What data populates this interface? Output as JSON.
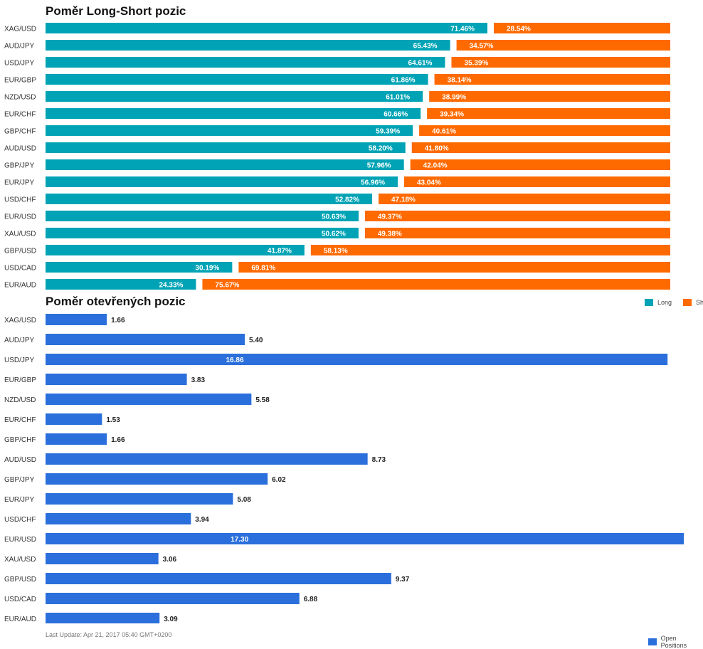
{
  "chart_data": [
    {
      "type": "bar",
      "stacked": true,
      "title": "Poměr Long-Short pozic",
      "categories": [
        "XAG/USD",
        "AUD/JPY",
        "USD/JPY",
        "EUR/GBP",
        "NZD/USD",
        "EUR/CHF",
        "GBP/CHF",
        "AUD/USD",
        "GBP/JPY",
        "EUR/JPY",
        "USD/CHF",
        "EUR/USD",
        "XAU/USD",
        "GBP/USD",
        "USD/CAD",
        "EUR/AUD"
      ],
      "series": [
        {
          "name": "Long",
          "color": "#00a3b5",
          "values": [
            71.46,
            65.43,
            64.61,
            61.86,
            61.01,
            60.66,
            59.39,
            58.2,
            57.96,
            56.96,
            52.82,
            50.63,
            50.62,
            41.87,
            30.19,
            24.33
          ]
        },
        {
          "name": "Short",
          "color": "#ff6a00",
          "values": [
            28.54,
            34.57,
            35.39,
            38.14,
            38.99,
            39.34,
            40.61,
            41.8,
            42.04,
            43.04,
            47.18,
            49.37,
            49.38,
            58.13,
            69.81,
            75.67
          ]
        }
      ],
      "legend": "top-right"
    },
    {
      "type": "bar",
      "title": "Poměr otevřených pozic",
      "categories": [
        "XAG/USD",
        "AUD/JPY",
        "USD/JPY",
        "EUR/GBP",
        "NZD/USD",
        "EUR/CHF",
        "GBP/CHF",
        "AUD/USD",
        "GBP/JPY",
        "EUR/JPY",
        "USD/CHF",
        "EUR/USD",
        "XAU/USD",
        "GBP/USD",
        "USD/CAD",
        "EUR/AUD"
      ],
      "series": [
        {
          "name": "Open Positions",
          "color": "#2a6fdb",
          "values": [
            1.66,
            5.4,
            16.86,
            3.83,
            5.58,
            1.53,
            1.66,
            8.73,
            6.02,
            5.08,
            3.94,
            17.3,
            3.06,
            9.37,
            6.88,
            3.09
          ]
        }
      ],
      "legend": "bottom-right"
    }
  ],
  "footer": {
    "last_update": "Last Update: Apr 21, 2017 05:40 GMT+0200"
  }
}
